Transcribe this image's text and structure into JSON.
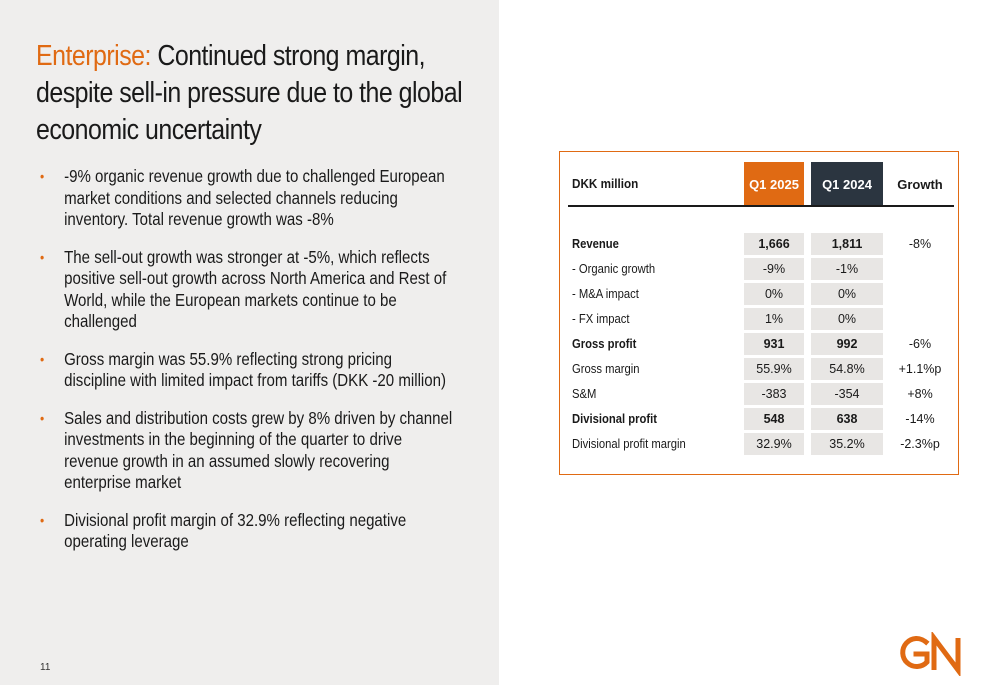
{
  "title": {
    "accent": "Enterprise:",
    "rest": " Continued strong margin, despite sell-in pressure due to the global economic uncertainty"
  },
  "bullets": [
    "-9% organic revenue growth due to challenged European market conditions and selected channels reducing inventory. Total revenue growth was -8%",
    "The sell-out growth was stronger at -5%, which reflects positive sell-out growth across North America and Rest of World, while the European markets continue to be challenged",
    "Gross margin was 55.9% reflecting strong pricing discipline with limited impact from tariffs (DKK -20 million)",
    "Sales and distribution costs grew by 8% driven by channel investments in the beginning of the quarter to drive revenue growth in an assumed slowly recovering enterprise market",
    "Divisional profit margin of 32.9% reflecting negative operating leverage"
  ],
  "bullet_marker": "•",
  "page_number": "11",
  "logo_text": "GN",
  "colors": {
    "accent": "#e06a13",
    "dark": "#2b3540",
    "panel": "#efeeed",
    "cell": "#e8e6e4"
  },
  "table": {
    "header_label": "DKK million",
    "col_q2025": "Q1 2025",
    "col_q2024": "Q1 2024",
    "col_growth": "Growth",
    "rows": [
      {
        "label": "Revenue",
        "q2025": "1,666",
        "q2024": "1,811",
        "growth": "-8%",
        "bold": true
      },
      {
        "label": "- Organic growth",
        "q2025": "-9%",
        "q2024": "-1%",
        "growth": "",
        "bold": false
      },
      {
        "label": "- M&A impact",
        "q2025": "0%",
        "q2024": "0%",
        "growth": "",
        "bold": false
      },
      {
        "label": "- FX impact",
        "q2025": "1%",
        "q2024": "0%",
        "growth": "",
        "bold": false
      },
      {
        "label": "Gross profit",
        "q2025": "931",
        "q2024": "992",
        "growth": "-6%",
        "bold": true
      },
      {
        "label": "Gross margin",
        "q2025": "55.9%",
        "q2024": "54.8%",
        "growth": "+1.1%p",
        "bold": false
      },
      {
        "label": "S&M",
        "q2025": "-383",
        "q2024": "-354",
        "growth": "+8%",
        "bold": false
      },
      {
        "label": "Divisional profit",
        "q2025": "548",
        "q2024": "638",
        "growth": "-14%",
        "bold": true
      },
      {
        "label": "Divisional profit margin",
        "q2025": "32.9%",
        "q2024": "35.2%",
        "growth": "-2.3%p",
        "bold": false
      }
    ]
  }
}
